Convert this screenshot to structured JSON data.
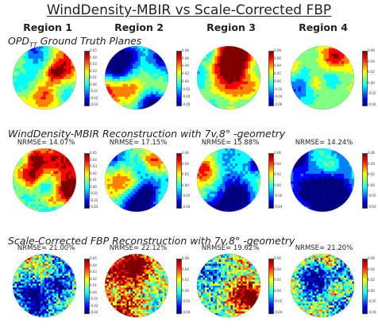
{
  "title": "WindDensity-MBIR vs Scale-Corrected FBP",
  "columns": [
    "Region 1",
    "Region 2",
    "Region 3",
    "Region 4"
  ],
  "sections": [
    {
      "title_main": "OPD",
      "title_sub": "TT",
      "title_rest": " Ground Truth Planes",
      "nrmse": [
        "",
        "",
        "",
        ""
      ],
      "colorbars": [
        [
          "0.05",
          "0.04",
          "0.03",
          "0.02",
          "0.01",
          "0.00",
          "-0.01",
          "-0.02",
          "-0.03"
        ],
        [
          "0.08",
          "0.06",
          "0.04",
          "0.02",
          "0.00",
          "-0.02",
          "-0.04",
          "-0.06",
          ""
        ],
        [
          "0.08",
          "0.06",
          "0.04",
          "0.02",
          "0.00",
          "-0.02",
          "-0.04",
          "-0.06",
          ""
        ],
        [
          "0.06",
          "0.04",
          "0.02",
          "0.00",
          "-0.02",
          "-0.04",
          "",
          "",
          ""
        ]
      ]
    },
    {
      "title_main": "WindDensity-MBIR Reconstruction with 7v,8° -geometry",
      "title_sub": "",
      "title_rest": "",
      "nrmse": [
        "NRMSE= 14.07%",
        "NRMSE= 17.15%",
        "NRMSE= 15.88%",
        "NRMSE= 14.24%"
      ],
      "colorbars": [
        [
          "0.05",
          "0.04",
          "0.03",
          "0.02",
          "0.01",
          "0.00",
          "-0.01",
          "-0.02",
          "-0.03"
        ],
        [
          "0.06",
          "0.04",
          "0.02",
          "0.00",
          "-0.02",
          "-0.04",
          "",
          "",
          ""
        ],
        [
          "0.06",
          "0.04",
          "0.02",
          "0.00",
          "-0.02",
          "-0.04",
          "",
          "",
          ""
        ],
        [
          "0.06",
          "0.04",
          "0.02",
          "0.00",
          "-0.02",
          "-0.04",
          "",
          "",
          ""
        ]
      ]
    },
    {
      "title_main": "Scale-Corrected FBP Reconstruction with 7v,8° -geometry",
      "title_sub": "",
      "title_rest": "",
      "nrmse": [
        "NRMSE= 21.00%",
        "NRMSE= 22.12%",
        "NRMSE= 19.62%",
        "NRMSE= 21.20%"
      ],
      "colorbars": [
        [
          "0.05",
          "0.04",
          "0.03",
          "0.02",
          "0.01",
          "0.00",
          "-0.01",
          "-0.02",
          "-0.03"
        ],
        [
          "0.06",
          "0.04",
          "0.02",
          "0.00",
          "-0.02",
          "-0.04",
          "",
          "",
          ""
        ],
        [
          "0.06",
          "0.04",
          "0.02",
          "0.00",
          "-0.02",
          "-0.04",
          "",
          "",
          ""
        ],
        [
          "0.06",
          "0.04",
          "0.02",
          "0.00",
          "-0.02",
          "-0.04",
          "",
          "",
          ""
        ]
      ]
    }
  ],
  "colormap": [
    "#00007f",
    "#0000ff",
    "#0080ff",
    "#00ffff",
    "#80ff80",
    "#ffff00",
    "#ff8000",
    "#ff0000",
    "#7f0000"
  ]
}
